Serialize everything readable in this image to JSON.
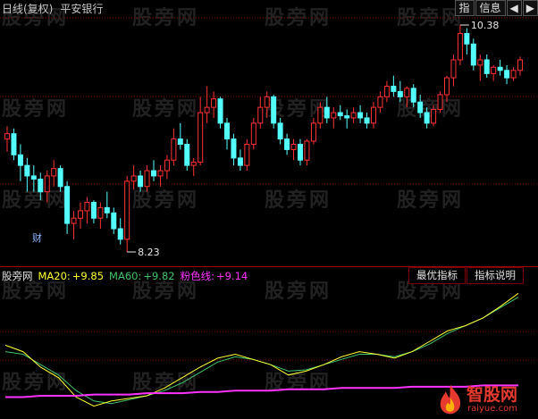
{
  "header": {
    "period": "日线(复权)",
    "stock_name": "平安银行"
  },
  "top_tabs": [
    "指",
    "信息",
    "◀",
    "▶"
  ],
  "price": {
    "high_label": "10.38",
    "low_label": "8.23",
    "event_marker": "财"
  },
  "indicator": {
    "name": "股旁网",
    "ma20_label": "MA20:",
    "ma20_value": "+9.85",
    "ma60_label": "MA60:",
    "ma60_value": "+9.82",
    "pink_label": "粉色线:",
    "pink_value": "+9.14",
    "tabs": [
      "最优指标",
      "指标说明"
    ]
  },
  "watermark": "股旁网",
  "logo": {
    "text": "智股网",
    "sub": "raiyue.com"
  },
  "colors": {
    "up": "#ff3232",
    "down": "#54ffff",
    "ma20": "#ffff33",
    "ma60": "#3fc46a",
    "pink": "#ff33ff",
    "grid": "#7a0000"
  },
  "chart_data": {
    "type": "candlestick",
    "ohlc": [
      [
        9.3,
        9.42,
        9.18,
        9.35
      ],
      [
        9.35,
        9.4,
        9.1,
        9.15
      ],
      [
        9.15,
        9.25,
        8.9,
        9.05
      ],
      [
        9.05,
        9.12,
        8.8,
        8.95
      ],
      [
        8.95,
        9.05,
        8.8,
        8.92
      ],
      [
        8.92,
        8.98,
        8.72,
        8.8
      ],
      [
        8.8,
        9.0,
        8.7,
        8.95
      ],
      [
        8.95,
        9.1,
        8.85,
        9.02
      ],
      [
        9.02,
        9.05,
        8.8,
        8.85
      ],
      [
        8.85,
        8.9,
        8.4,
        8.5
      ],
      [
        8.5,
        8.62,
        8.35,
        8.55
      ],
      [
        8.55,
        8.7,
        8.45,
        8.62
      ],
      [
        8.62,
        8.75,
        8.5,
        8.7
      ],
      [
        8.7,
        8.72,
        8.5,
        8.55
      ],
      [
        8.55,
        8.7,
        8.45,
        8.65
      ],
      [
        8.65,
        8.8,
        8.55,
        8.6
      ],
      [
        8.6,
        8.65,
        8.4,
        8.45
      ],
      [
        8.45,
        8.55,
        8.3,
        8.35
      ],
      [
        8.35,
        8.95,
        8.23,
        8.9
      ],
      [
        8.9,
        9.05,
        8.82,
        8.95
      ],
      [
        8.95,
        9.0,
        8.8,
        8.85
      ],
      [
        8.85,
        9.05,
        8.8,
        9.0
      ],
      [
        9.0,
        9.1,
        8.9,
        8.95
      ],
      [
        8.95,
        9.05,
        8.85,
        9.0
      ],
      [
        9.0,
        9.15,
        8.92,
        9.1
      ],
      [
        9.1,
        9.4,
        9.05,
        9.3
      ],
      [
        9.3,
        9.45,
        9.2,
        9.25
      ],
      [
        9.25,
        9.3,
        9.0,
        9.05
      ],
      [
        9.05,
        9.12,
        8.95,
        9.08
      ],
      [
        9.08,
        9.7,
        9.05,
        9.55
      ],
      [
        9.55,
        9.8,
        9.45,
        9.6
      ],
      [
        9.6,
        9.75,
        9.5,
        9.68
      ],
      [
        9.68,
        9.7,
        9.4,
        9.45
      ],
      [
        9.45,
        9.5,
        9.2,
        9.3
      ],
      [
        9.3,
        9.35,
        9.05,
        9.12
      ],
      [
        9.12,
        9.2,
        9.0,
        9.05
      ],
      [
        9.05,
        9.3,
        9.0,
        9.25
      ],
      [
        9.25,
        9.5,
        9.2,
        9.45
      ],
      [
        9.45,
        9.7,
        9.4,
        9.6
      ],
      [
        9.6,
        9.75,
        9.5,
        9.7
      ],
      [
        9.7,
        9.72,
        9.4,
        9.45
      ],
      [
        9.45,
        9.5,
        9.25,
        9.3
      ],
      [
        9.3,
        9.35,
        9.15,
        9.2
      ],
      [
        9.2,
        9.3,
        9.1,
        9.25
      ],
      [
        9.25,
        9.3,
        9.05,
        9.1
      ],
      [
        9.1,
        9.3,
        9.05,
        9.28
      ],
      [
        9.28,
        9.5,
        9.25,
        9.45
      ],
      [
        9.45,
        9.65,
        9.4,
        9.6
      ],
      [
        9.6,
        9.7,
        9.45,
        9.5
      ],
      [
        9.5,
        9.6,
        9.4,
        9.55
      ],
      [
        9.55,
        9.62,
        9.48,
        9.52
      ],
      [
        9.52,
        9.58,
        9.4,
        9.5
      ],
      [
        9.5,
        9.6,
        9.45,
        9.55
      ],
      [
        9.55,
        9.62,
        9.45,
        9.5
      ],
      [
        9.5,
        9.55,
        9.4,
        9.45
      ],
      [
        9.45,
        9.65,
        9.4,
        9.6
      ],
      [
        9.6,
        9.75,
        9.55,
        9.7
      ],
      [
        9.7,
        9.85,
        9.65,
        9.8
      ],
      [
        9.8,
        9.9,
        9.7,
        9.75
      ],
      [
        9.75,
        9.85,
        9.65,
        9.7
      ],
      [
        9.7,
        9.8,
        9.6,
        9.78
      ],
      [
        9.78,
        9.82,
        9.6,
        9.65
      ],
      [
        9.65,
        9.72,
        9.5,
        9.55
      ],
      [
        9.55,
        9.6,
        9.4,
        9.45
      ],
      [
        9.45,
        9.62,
        9.42,
        9.58
      ],
      [
        9.58,
        9.75,
        9.55,
        9.72
      ],
      [
        9.72,
        9.9,
        9.65,
        9.88
      ],
      [
        9.88,
        10.1,
        9.8,
        10.05
      ],
      [
        10.05,
        10.38,
        10.0,
        10.3
      ],
      [
        10.3,
        10.35,
        10.1,
        10.2
      ],
      [
        10.2,
        10.25,
        9.95,
        10.0
      ],
      [
        10.0,
        10.1,
        9.85,
        10.05
      ],
      [
        10.05,
        10.1,
        9.88,
        9.92
      ],
      [
        9.92,
        10.0,
        9.85,
        9.98
      ],
      [
        9.98,
        10.05,
        9.9,
        9.95
      ],
      [
        9.95,
        10.0,
        9.82,
        9.88
      ],
      [
        9.88,
        9.98,
        9.85,
        9.95
      ],
      [
        9.95,
        10.08,
        9.9,
        10.05
      ]
    ],
    "ma20": [
      9.45,
      9.4,
      9.28,
      9.2,
      9.05,
      8.98,
      9.02,
      9.04,
      9.06,
      9.12,
      9.2,
      9.28,
      9.35,
      9.38,
      9.34,
      9.3,
      9.22,
      9.25,
      9.3,
      9.36,
      9.4,
      9.38,
      9.35,
      9.4,
      9.48,
      9.56,
      9.6,
      9.66,
      9.75,
      9.85
    ],
    "ma60": [
      9.4,
      9.38,
      9.3,
      9.22,
      9.1,
      9.02,
      9.0,
      9.03,
      9.06,
      9.1,
      9.16,
      9.24,
      9.32,
      9.36,
      9.34,
      9.3,
      9.25,
      9.26,
      9.3,
      9.34,
      9.38,
      9.38,
      9.36,
      9.4,
      9.46,
      9.54,
      9.6,
      9.66,
      9.74,
      9.82
    ],
    "pink": [
      9.05,
      9.05,
      9.06,
      9.06,
      9.06,
      9.07,
      9.07,
      9.07,
      9.08,
      9.08,
      9.08,
      9.09,
      9.09,
      9.1,
      9.1,
      9.1,
      9.11,
      9.11,
      9.11,
      9.12,
      9.12,
      9.12,
      9.12,
      9.13,
      9.13,
      9.13,
      9.13,
      9.14,
      9.14,
      9.14
    ]
  }
}
